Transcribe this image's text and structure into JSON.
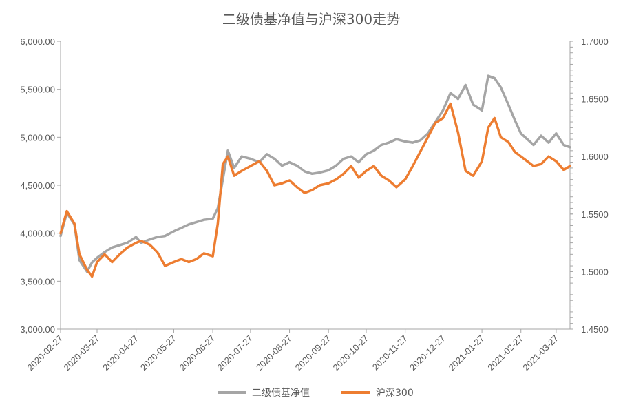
{
  "chart_data": {
    "type": "line",
    "title": "二级债基净值与沪深300走势",
    "x_tick_labels": [
      "2020-02-27",
      "2020-03-27",
      "2020-04-27",
      "2020-05-27",
      "2020-06-27",
      "2020-07-27",
      "2020-08-27",
      "2020-09-27",
      "2020-10-27",
      "2020-11-27",
      "2020-12-27",
      "2021-01-27",
      "2021-02-27",
      "2021-03-27"
    ],
    "y_left": {
      "range": [
        3000,
        6000
      ],
      "ticks": [
        "3,000.00",
        "3,500.00",
        "4,000.00",
        "4,500.00",
        "5,000.00",
        "5,500.00",
        "6,000.00"
      ]
    },
    "y_right": {
      "range": [
        1.45,
        1.7
      ],
      "ticks": [
        "1.4500",
        "1.5000",
        "1.5500",
        "1.6000",
        "1.6500",
        "1.7000"
      ]
    },
    "legend_position": "bottom",
    "grid": false,
    "series": [
      {
        "name": "二级债基净值",
        "axis": "right",
        "color": "#A5A5A5",
        "x": [
          "2020-02-27",
          "2020-03-03",
          "2020-03-09",
          "2020-03-13",
          "2020-03-19",
          "2020-03-23",
          "2020-03-27",
          "2020-04-02",
          "2020-04-08",
          "2020-04-14",
          "2020-04-20",
          "2020-04-27",
          "2020-05-01",
          "2020-05-08",
          "2020-05-14",
          "2020-05-20",
          "2020-05-27",
          "2020-06-02",
          "2020-06-08",
          "2020-06-14",
          "2020-06-20",
          "2020-06-27",
          "2020-07-01",
          "2020-07-05",
          "2020-07-09",
          "2020-07-14",
          "2020-07-20",
          "2020-07-27",
          "2020-08-03",
          "2020-08-09",
          "2020-08-15",
          "2020-08-21",
          "2020-08-27",
          "2020-09-02",
          "2020-09-08",
          "2020-09-14",
          "2020-09-20",
          "2020-09-27",
          "2020-10-03",
          "2020-10-09",
          "2020-10-15",
          "2020-10-21",
          "2020-10-27",
          "2020-11-02",
          "2020-11-08",
          "2020-11-14",
          "2020-11-20",
          "2020-11-27",
          "2020-12-03",
          "2020-12-09",
          "2020-12-15",
          "2020-12-21",
          "2020-12-27",
          "2021-01-02",
          "2021-01-08",
          "2021-01-14",
          "2021-01-20",
          "2021-01-27",
          "2021-02-01",
          "2021-02-06",
          "2021-02-11",
          "2021-02-17",
          "2021-02-22",
          "2021-02-27",
          "2021-03-04",
          "2021-03-09",
          "2021-03-15",
          "2021-03-21",
          "2021-03-27",
          "2021-04-02",
          "2021-04-07"
        ],
        "values": [
          1.531,
          1.551,
          1.541,
          1.51,
          1.5,
          1.508,
          1.512,
          1.517,
          1.521,
          1.523,
          1.525,
          1.53,
          1.525,
          1.528,
          1.53,
          1.531,
          1.535,
          1.538,
          1.541,
          1.543,
          1.545,
          1.546,
          1.555,
          1.58,
          1.605,
          1.59,
          1.6,
          1.598,
          1.595,
          1.602,
          1.598,
          1.592,
          1.595,
          1.592,
          1.587,
          1.585,
          1.586,
          1.588,
          1.592,
          1.598,
          1.6,
          1.595,
          1.602,
          1.605,
          1.61,
          1.612,
          1.615,
          1.613,
          1.612,
          1.614,
          1.62,
          1.63,
          1.64,
          1.655,
          1.65,
          1.662,
          1.645,
          1.64,
          1.67,
          1.668,
          1.66,
          1.645,
          1.632,
          1.62,
          1.615,
          1.61,
          1.618,
          1.612,
          1.62,
          1.61,
          1.608
        ]
      },
      {
        "name": "沪深300",
        "axis": "left",
        "color": "#ED7D31",
        "x": [
          "2020-02-27",
          "2020-03-03",
          "2020-03-09",
          "2020-03-13",
          "2020-03-19",
          "2020-03-23",
          "2020-03-27",
          "2020-04-02",
          "2020-04-08",
          "2020-04-14",
          "2020-04-20",
          "2020-04-27",
          "2020-05-01",
          "2020-05-08",
          "2020-05-14",
          "2020-05-20",
          "2020-05-27",
          "2020-06-02",
          "2020-06-08",
          "2020-06-14",
          "2020-06-20",
          "2020-06-27",
          "2020-07-01",
          "2020-07-05",
          "2020-07-09",
          "2020-07-14",
          "2020-07-20",
          "2020-07-27",
          "2020-08-03",
          "2020-08-09",
          "2020-08-15",
          "2020-08-21",
          "2020-08-27",
          "2020-09-02",
          "2020-09-08",
          "2020-09-14",
          "2020-09-20",
          "2020-09-27",
          "2020-10-03",
          "2020-10-09",
          "2020-10-15",
          "2020-10-21",
          "2020-10-27",
          "2020-11-02",
          "2020-11-08",
          "2020-11-14",
          "2020-11-20",
          "2020-11-27",
          "2020-12-03",
          "2020-12-09",
          "2020-12-15",
          "2020-12-21",
          "2020-12-27",
          "2021-01-02",
          "2021-01-08",
          "2021-01-14",
          "2021-01-20",
          "2021-01-27",
          "2021-02-01",
          "2021-02-06",
          "2021-02-11",
          "2021-02-17",
          "2021-02-22",
          "2021-02-27",
          "2021-03-04",
          "2021-03-09",
          "2021-03-15",
          "2021-03-21",
          "2021-03-27",
          "2021-04-02",
          "2021-04-07"
        ],
        "values": [
          4000,
          4230,
          4100,
          3780,
          3620,
          3550,
          3700,
          3780,
          3700,
          3780,
          3850,
          3900,
          3920,
          3880,
          3800,
          3660,
          3700,
          3730,
          3700,
          3730,
          3790,
          3760,
          4100,
          4720,
          4800,
          4600,
          4650,
          4700,
          4750,
          4650,
          4500,
          4520,
          4550,
          4480,
          4420,
          4450,
          4500,
          4520,
          4560,
          4620,
          4700,
          4580,
          4650,
          4700,
          4600,
          4550,
          4480,
          4560,
          4700,
          4850,
          5000,
          5150,
          5200,
          5350,
          5050,
          4650,
          4600,
          4750,
          5100,
          5200,
          5000,
          4950,
          4850,
          4800,
          4750,
          4700,
          4720,
          4800,
          4750,
          4660,
          4700
        ]
      }
    ]
  }
}
